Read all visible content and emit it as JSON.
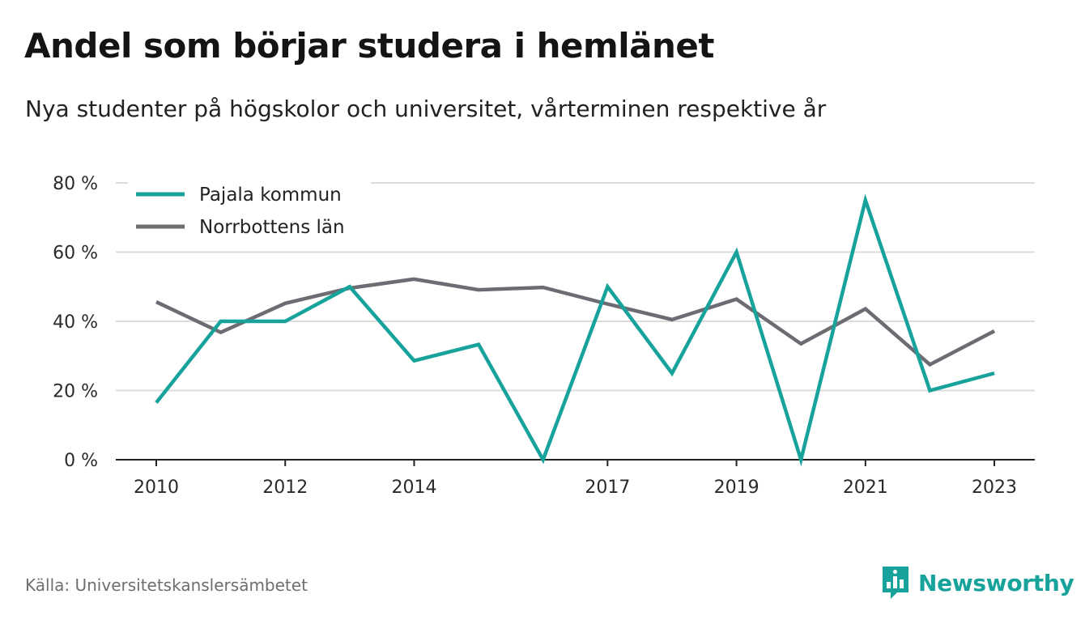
{
  "header": {
    "title": "Andel som börjar studera i hemlänet",
    "subtitle": "Nya studenter på högskolor och universitet, vårterminen respektive år"
  },
  "footer": {
    "source": "Källa: Universitetskanslersämbetet",
    "brand": "Newsworthy",
    "brand_icon": "bar-chart-speech-bubble-icon",
    "brand_color": "#17a39b"
  },
  "chart_data": {
    "type": "line",
    "x": [
      2010,
      2011,
      2012,
      2013,
      2014,
      2015,
      2016,
      2017,
      2018,
      2019,
      2020,
      2021,
      2022,
      2023
    ],
    "x_tick_values": [
      2010,
      2012,
      2014,
      2017,
      2019,
      2021,
      2023
    ],
    "x_tick_labels": [
      "2010",
      "2012",
      "2014",
      "2017",
      "2019",
      "2021",
      "2023"
    ],
    "ylim": [
      0,
      80
    ],
    "y_ticks": [
      0,
      20,
      40,
      60,
      80
    ],
    "y_tick_labels": [
      "0 %",
      "20 %",
      "40 %",
      "60 %",
      "80 %"
    ],
    "grid": true,
    "legend_position": "top-left",
    "series": [
      {
        "name": "Pajala kommun",
        "color": "#17a39b",
        "values": [
          16.5,
          40,
          40,
          50,
          28.6,
          33.3,
          0,
          50,
          25,
          60,
          0,
          75,
          20,
          25
        ]
      },
      {
        "name": "Norrbottens län",
        "color": "#6d6c72",
        "values": [
          45.6,
          36.8,
          45.2,
          49.6,
          52.2,
          49.1,
          49.8,
          45,
          40.5,
          46.4,
          33.5,
          43.6,
          27.5,
          37.2
        ]
      }
    ]
  }
}
